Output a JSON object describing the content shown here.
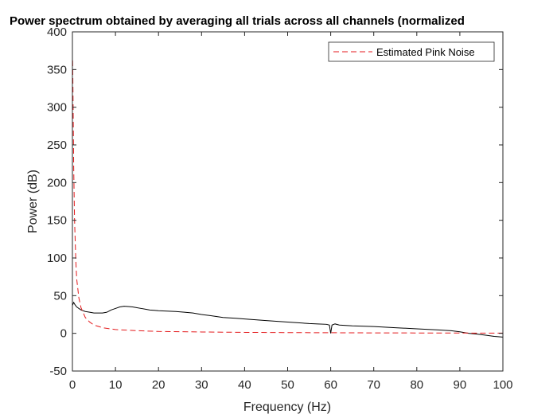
{
  "chart_data": {
    "type": "line",
    "title": "Power spectrum obtained by averaging all trials across all channels (normalized",
    "xlabel": "Frequency (Hz)",
    "ylabel": "Power (dB)",
    "xlim": [
      0,
      100
    ],
    "ylim": [
      -50,
      400
    ],
    "xticks": [
      0,
      10,
      20,
      30,
      40,
      50,
      60,
      70,
      80,
      90,
      100
    ],
    "yticks": [
      -50,
      0,
      50,
      100,
      150,
      200,
      250,
      300,
      350,
      400
    ],
    "grid": false,
    "legend_position": "top-right",
    "series": [
      {
        "color": "#000000",
        "dash": "solid",
        "points": [
          [
            0,
            37
          ],
          [
            0.3,
            41
          ],
          [
            0.6,
            38
          ],
          [
            1,
            35
          ],
          [
            2,
            31
          ],
          [
            3,
            29
          ],
          [
            4,
            28
          ],
          [
            5,
            27
          ],
          [
            6,
            27
          ],
          [
            7,
            27
          ],
          [
            8,
            28
          ],
          [
            9,
            31
          ],
          [
            10,
            33
          ],
          [
            11,
            35
          ],
          [
            12,
            36
          ],
          [
            13,
            35.5
          ],
          [
            14,
            35
          ],
          [
            15,
            34
          ],
          [
            16,
            33
          ],
          [
            17,
            32
          ],
          [
            18,
            31
          ],
          [
            19,
            30.5
          ],
          [
            20,
            30
          ],
          [
            22,
            29.5
          ],
          [
            24,
            29
          ],
          [
            26,
            28
          ],
          [
            28,
            27
          ],
          [
            30,
            25
          ],
          [
            32,
            23.5
          ],
          [
            35,
            21
          ],
          [
            38,
            20
          ],
          [
            40,
            19
          ],
          [
            45,
            17
          ],
          [
            50,
            15
          ],
          [
            55,
            13
          ],
          [
            57,
            12.5
          ],
          [
            59,
            12
          ],
          [
            59.7,
            11
          ],
          [
            60,
            0
          ],
          [
            60.3,
            11
          ],
          [
            61,
            12.5
          ],
          [
            62,
            11
          ],
          [
            65,
            10
          ],
          [
            70,
            9
          ],
          [
            75,
            7.5
          ],
          [
            80,
            6
          ],
          [
            85,
            4.5
          ],
          [
            88,
            3.5
          ],
          [
            90,
            2
          ],
          [
            92,
            0
          ],
          [
            94,
            -1
          ],
          [
            96,
            -2.5
          ],
          [
            98,
            -4
          ],
          [
            100,
            -5
          ]
        ]
      },
      {
        "name": "Estimated Pink Noise",
        "color": "#e41a1c",
        "dash": "dashed",
        "points": [
          [
            0.05,
            362
          ],
          [
            0.1,
            340
          ],
          [
            0.2,
            280
          ],
          [
            0.3,
            220
          ],
          [
            0.5,
            150
          ],
          [
            0.8,
            95
          ],
          [
            1,
            72
          ],
          [
            1.5,
            47
          ],
          [
            2,
            34
          ],
          [
            3,
            21
          ],
          [
            4,
            15
          ],
          [
            5,
            11
          ],
          [
            7,
            7.5
          ],
          [
            10,
            5
          ],
          [
            15,
            3.5
          ],
          [
            20,
            2.5
          ],
          [
            30,
            1.8
          ],
          [
            40,
            1.3
          ],
          [
            50,
            1
          ],
          [
            60,
            0.8
          ],
          [
            70,
            0.6
          ],
          [
            80,
            0.5
          ],
          [
            90,
            0.4
          ],
          [
            100,
            0.3
          ]
        ]
      }
    ]
  }
}
